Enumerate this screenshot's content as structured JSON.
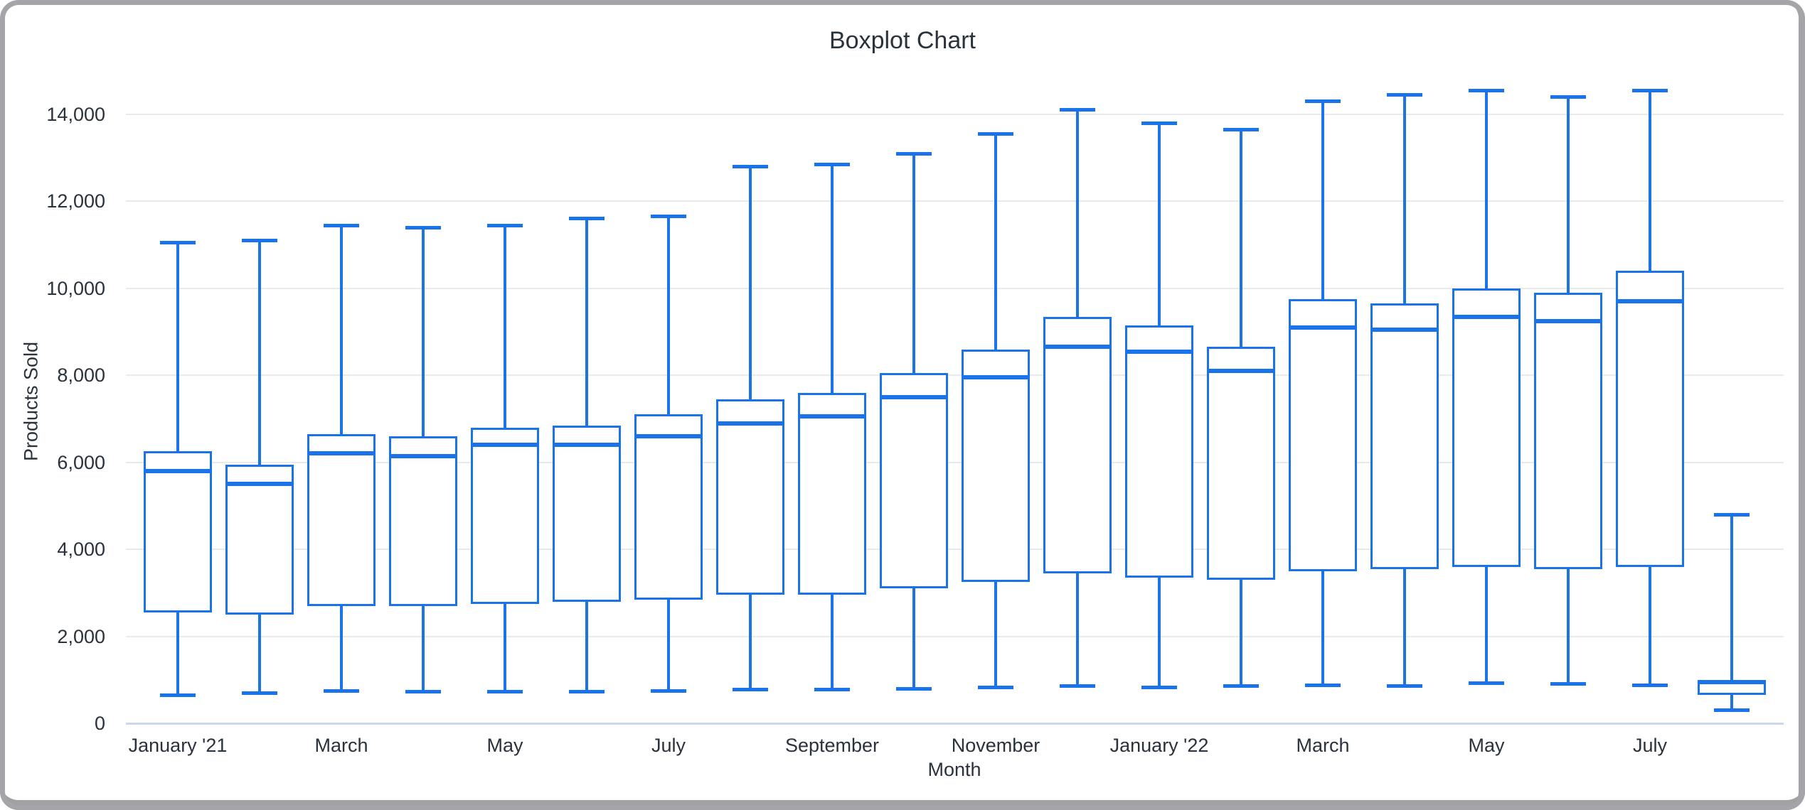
{
  "chart": {
    "title": "Boxplot Chart",
    "x_axis_title": "Month",
    "y_axis_title": "Products Sold"
  },
  "colors": {
    "series_blue": "#1a73e8",
    "gridline": "#e9eaec",
    "baseline": "#ccd7e8",
    "text": "#2a323c",
    "frame_gray": "#a4a4a9"
  },
  "chart_data": {
    "type": "boxplot",
    "title": "Boxplot Chart",
    "xlabel": "Month",
    "ylabel": "Products Sold",
    "ylim": [
      0,
      14000
    ],
    "grid": true,
    "legend": "none",
    "y_ticks": [
      0,
      2000,
      4000,
      6000,
      8000,
      10000,
      12000,
      14000
    ],
    "y_tick_labels": [
      "0",
      "2,000",
      "4,000",
      "6,000",
      "8,000",
      "10,000",
      "12,000",
      "14,000"
    ],
    "x_tick_labels": [
      "January '21",
      "March",
      "May",
      "July",
      "September",
      "November",
      "January '22",
      "March",
      "May",
      "July"
    ],
    "points": [
      {
        "month": "January '21",
        "min": 650,
        "q1": 2550,
        "median": 5800,
        "q3": 6250,
        "max": 11050
      },
      {
        "month": "February '21",
        "min": 700,
        "q1": 2500,
        "median": 5500,
        "q3": 5950,
        "max": 11100
      },
      {
        "month": "March '21",
        "min": 750,
        "q1": 2700,
        "median": 6200,
        "q3": 6650,
        "max": 11450
      },
      {
        "month": "April '21",
        "min": 720,
        "q1": 2700,
        "median": 6150,
        "q3": 6600,
        "max": 11400
      },
      {
        "month": "May '21",
        "min": 720,
        "q1": 2750,
        "median": 6400,
        "q3": 6800,
        "max": 11450
      },
      {
        "month": "June '21",
        "min": 730,
        "q1": 2800,
        "median": 6400,
        "q3": 6850,
        "max": 11600
      },
      {
        "month": "July '21",
        "min": 740,
        "q1": 2850,
        "median": 6600,
        "q3": 7100,
        "max": 11650
      },
      {
        "month": "August '21",
        "min": 780,
        "q1": 2950,
        "median": 6900,
        "q3": 7450,
        "max": 12800
      },
      {
        "month": "September '21",
        "min": 780,
        "q1": 2950,
        "median": 7050,
        "q3": 7600,
        "max": 12850
      },
      {
        "month": "October '21",
        "min": 800,
        "q1": 3100,
        "median": 7500,
        "q3": 8050,
        "max": 13100
      },
      {
        "month": "November '21",
        "min": 820,
        "q1": 3250,
        "median": 7950,
        "q3": 8600,
        "max": 13550
      },
      {
        "month": "December '21",
        "min": 850,
        "q1": 3450,
        "median": 8650,
        "q3": 9350,
        "max": 14100
      },
      {
        "month": "January '22",
        "min": 820,
        "q1": 3350,
        "median": 8550,
        "q3": 9150,
        "max": 13800
      },
      {
        "month": "February '22",
        "min": 850,
        "q1": 3300,
        "median": 8100,
        "q3": 8650,
        "max": 13650
      },
      {
        "month": "March '22",
        "min": 870,
        "q1": 3500,
        "median": 9100,
        "q3": 9750,
        "max": 14300
      },
      {
        "month": "April '22",
        "min": 850,
        "q1": 3550,
        "median": 9050,
        "q3": 9650,
        "max": 14450
      },
      {
        "month": "May '22",
        "min": 930,
        "q1": 3600,
        "median": 9350,
        "q3": 10000,
        "max": 14550
      },
      {
        "month": "June '22",
        "min": 900,
        "q1": 3550,
        "median": 9250,
        "q3": 9900,
        "max": 14400
      },
      {
        "month": "July '22",
        "min": 880,
        "q1": 3600,
        "median": 9700,
        "q3": 10400,
        "max": 14550
      },
      {
        "month": "August '22",
        "min": 300,
        "q1": 650,
        "median": 940,
        "q3": 970,
        "max": 4800
      }
    ]
  }
}
